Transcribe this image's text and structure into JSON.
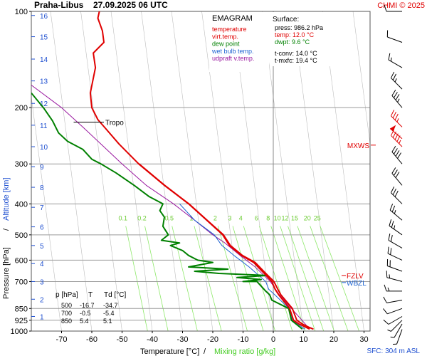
{
  "header": {
    "station": "Praha-Libus",
    "datetime": "27.09.2025 06 UTC",
    "copyright": "CHMI © 2025"
  },
  "legend": {
    "title": "EMAGRAM",
    "items": [
      {
        "label": "temperature",
        "color": "#e00000"
      },
      {
        "label": "virt.temp.",
        "color": "#e00000"
      },
      {
        "label": "dew point",
        "color": "#008000"
      },
      {
        "label": "wet bulb temp.",
        "color": "#1e64d2"
      },
      {
        "label": "udpraft v.temp.",
        "color": "#9a1aa0"
      }
    ]
  },
  "surface": {
    "title": "Surface:",
    "lines": [
      {
        "text": "press: 986.2 hPa",
        "color": "#000000"
      },
      {
        "text": "temp: 12.0 °C",
        "color": "#e00000"
      },
      {
        "text": "dwpt: 9.6 °C",
        "color": "#008000"
      },
      {
        "text": "t-conv: 14.0 °C",
        "color": "#000000"
      },
      {
        "text": "t-mxfc: 19.4 °C",
        "color": "#000000"
      }
    ]
  },
  "table": {
    "headers": [
      "p [hPa]",
      "T",
      "Td [°C]"
    ],
    "rows": [
      [
        "500",
        "-16.7",
        "-34.7"
      ],
      [
        "700",
        "-0.5",
        "-5.4"
      ],
      [
        "850",
        "5.4",
        "5.1"
      ]
    ]
  },
  "levels": {
    "tropo": "Tropo",
    "mxws": "MXWS",
    "fzlv": "FZLV",
    "wbzl": "WBZL"
  },
  "sfc": "SFC: 304 m ASL",
  "chart_data": {
    "type": "line",
    "title": "EMAGRAM",
    "xlabel": "Temperature [°C]",
    "xlabel2": "Mixing ratio [g/kg]",
    "xlabel_sep": "/",
    "ylabel": "Pressure [hPa]",
    "ylabel2": "Altitude [km]",
    "ylabel_sep": "/",
    "xlim": [
      -80,
      32
    ],
    "ylim": [
      1000,
      100
    ],
    "y_scale": "log",
    "x_ticks": [
      "-70",
      "-60",
      "-50",
      "-40",
      "-30",
      "-20",
      "-10",
      "0",
      "10",
      "20",
      "30"
    ],
    "y_ticks": [
      "100",
      "200",
      "300",
      "400",
      "500",
      "600",
      "700",
      "850",
      "925",
      "1000"
    ],
    "altitude_ticks_km": [
      "1",
      "2",
      "3",
      "4",
      "5",
      "6",
      "7",
      "8",
      "9",
      "10",
      "11",
      "12",
      "13",
      "14",
      "15",
      "16"
    ],
    "altitude_pressure": [
      900,
      795,
      700,
      615,
      540,
      472,
      410,
      355,
      306,
      265,
      227,
      194,
      165,
      141,
      120,
      103
    ],
    "mixing_ratio_labels": [
      "0.1",
      "0.2",
      "0.5",
      "1",
      "2",
      "3",
      "4",
      "6",
      "8",
      "10",
      "12",
      "15",
      "20",
      "25"
    ],
    "mixing_ratio_values": [
      0.1,
      0.2,
      0.5,
      1,
      2,
      3,
      4,
      6,
      8,
      10,
      12,
      15,
      20,
      25
    ],
    "series": [
      {
        "name": "temperature",
        "color": "#e00000",
        "points": [
          [
            12.0,
            986
          ],
          [
            11.0,
            975
          ],
          [
            8.5,
            950
          ],
          [
            6.7,
            925
          ],
          [
            5.4,
            850
          ],
          [
            1.8,
            770
          ],
          [
            0.6,
            740
          ],
          [
            -0.5,
            700
          ],
          [
            -3.0,
            660
          ],
          [
            -6.5,
            610
          ],
          [
            -10.5,
            580
          ],
          [
            -14.5,
            540
          ],
          [
            -16.7,
            500
          ],
          [
            -22.0,
            450
          ],
          [
            -28.0,
            400
          ],
          [
            -36.0,
            350
          ],
          [
            -44.5,
            300
          ],
          [
            -51.0,
            260
          ],
          [
            -55.5,
            232
          ],
          [
            -58.0,
            218
          ],
          [
            -60.0,
            200
          ],
          [
            -60.5,
            180
          ],
          [
            -58.8,
            150
          ],
          [
            -59.5,
            135
          ],
          [
            -56.0,
            125
          ],
          [
            -56.5,
            115
          ],
          [
            -58.0,
            105
          ],
          [
            -57.5,
            100
          ]
        ]
      },
      {
        "name": "virt.temp.",
        "color": "#e00000",
        "points": [
          [
            13.3,
            986
          ],
          [
            12.0,
            975
          ],
          [
            9.6,
            950
          ],
          [
            7.8,
            925
          ],
          [
            6.3,
            850
          ],
          [
            2.5,
            770
          ],
          [
            1.5,
            740
          ],
          [
            0.2,
            700
          ],
          [
            -2.5,
            660
          ],
          [
            -6.0,
            610
          ],
          [
            -10.2,
            580
          ],
          [
            -14.2,
            540
          ],
          [
            -16.5,
            500
          ],
          [
            -21.9,
            450
          ],
          [
            -27.9,
            400
          ],
          [
            -35.9,
            350
          ],
          [
            -44.4,
            300
          ]
        ]
      },
      {
        "name": "dew point",
        "color": "#008000",
        "points": [
          [
            9.6,
            986
          ],
          [
            9.0,
            975
          ],
          [
            7.5,
            950
          ],
          [
            6.0,
            925
          ],
          [
            5.1,
            850
          ],
          [
            -0.5,
            800
          ],
          [
            -1.2,
            770
          ],
          [
            -2.5,
            750
          ],
          [
            -5.4,
            700
          ],
          [
            -10.0,
            700
          ],
          [
            -4.0,
            690
          ],
          [
            -12.0,
            680
          ],
          [
            -2.0,
            670
          ],
          [
            -18.0,
            660
          ],
          [
            -26.0,
            650
          ],
          [
            -15.0,
            640
          ],
          [
            -28.0,
            630
          ],
          [
            -20.0,
            610
          ],
          [
            -25.0,
            600
          ],
          [
            -28.0,
            580
          ],
          [
            -30.0,
            560
          ],
          [
            -34.0,
            540
          ],
          [
            -31.0,
            530
          ],
          [
            -37.0,
            520
          ],
          [
            -34.7,
            500
          ],
          [
            -36.5,
            470
          ],
          [
            -36.0,
            440
          ],
          [
            -37.5,
            420
          ],
          [
            -36.5,
            400
          ],
          [
            -41.0,
            380
          ],
          [
            -46.0,
            350
          ],
          [
            -52.0,
            320
          ],
          [
            -57.0,
            300
          ],
          [
            -60.0,
            290
          ],
          [
            -63.0,
            270
          ],
          [
            -68.0,
            255
          ],
          [
            -71.0,
            240
          ],
          [
            -73.0,
            220
          ],
          [
            -76.0,
            200
          ],
          [
            -80.0,
            180
          ]
        ]
      },
      {
        "name": "wet bulb temp.",
        "color": "#1e64d2",
        "points": [
          [
            10.5,
            986
          ],
          [
            8.0,
            950
          ],
          [
            6.3,
            925
          ],
          [
            5.2,
            850
          ],
          [
            0.5,
            770
          ],
          [
            -1.5,
            740
          ],
          [
            -2.5,
            700
          ],
          [
            -8.0,
            630
          ],
          [
            -13.0,
            580
          ],
          [
            -17.0,
            540
          ],
          [
            -19.5,
            500
          ],
          [
            -26.0,
            450
          ],
          [
            -31.0,
            400
          ]
        ]
      },
      {
        "name": "udpraft v.temp.",
        "color": "#9a1aa0",
        "points": [
          [
            12.0,
            986
          ],
          [
            9.5,
            925
          ],
          [
            6.0,
            850
          ],
          [
            2.0,
            770
          ],
          [
            -1.0,
            700
          ],
          [
            -6.0,
            630
          ],
          [
            -11.0,
            580
          ],
          [
            -16.0,
            530
          ],
          [
            -20.0,
            500
          ],
          [
            -26.0,
            450
          ],
          [
            -33.0,
            400
          ],
          [
            -42.0,
            350
          ],
          [
            -50.0,
            300
          ],
          [
            -57.0,
            260
          ],
          [
            -63.0,
            230
          ],
          [
            -70.0,
            200
          ],
          [
            -80.0,
            170
          ]
        ]
      }
    ],
    "winds": [
      {
        "p": 988,
        "dir": 200,
        "kt": 5
      },
      {
        "p": 950,
        "dir": 210,
        "kt": 5
      },
      {
        "p": 925,
        "dir": 225,
        "kt": 5
      },
      {
        "p": 900,
        "dir": 240,
        "kt": 10
      },
      {
        "p": 850,
        "dir": 250,
        "kt": 10
      },
      {
        "p": 800,
        "dir": 260,
        "kt": 10
      },
      {
        "p": 750,
        "dir": 270,
        "kt": 15
      },
      {
        "p": 700,
        "dir": 285,
        "kt": 15
      },
      {
        "p": 650,
        "dir": 290,
        "kt": 20
      },
      {
        "p": 600,
        "dir": 295,
        "kt": 20
      },
      {
        "p": 550,
        "dir": 300,
        "kt": 20
      },
      {
        "p": 500,
        "dir": 305,
        "kt": 25
      },
      {
        "p": 450,
        "dir": 310,
        "kt": 25
      },
      {
        "p": 400,
        "dir": 315,
        "kt": 30
      },
      {
        "p": 350,
        "dir": 320,
        "kt": 30
      },
      {
        "p": 300,
        "dir": 320,
        "kt": 40
      },
      {
        "p": 265,
        "dir": 315,
        "kt": 45
      },
      {
        "p": 250,
        "dir": 310,
        "kt": 50
      },
      {
        "p": 230,
        "dir": 315,
        "kt": 35
      },
      {
        "p": 200,
        "dir": 320,
        "kt": 35
      },
      {
        "p": 175,
        "dir": 315,
        "kt": 25
      },
      {
        "p": 150,
        "dir": 300,
        "kt": 15
      },
      {
        "p": 125,
        "dir": 290,
        "kt": 10
      },
      {
        "p": 100,
        "dir": 270,
        "kt": 10
      }
    ]
  }
}
